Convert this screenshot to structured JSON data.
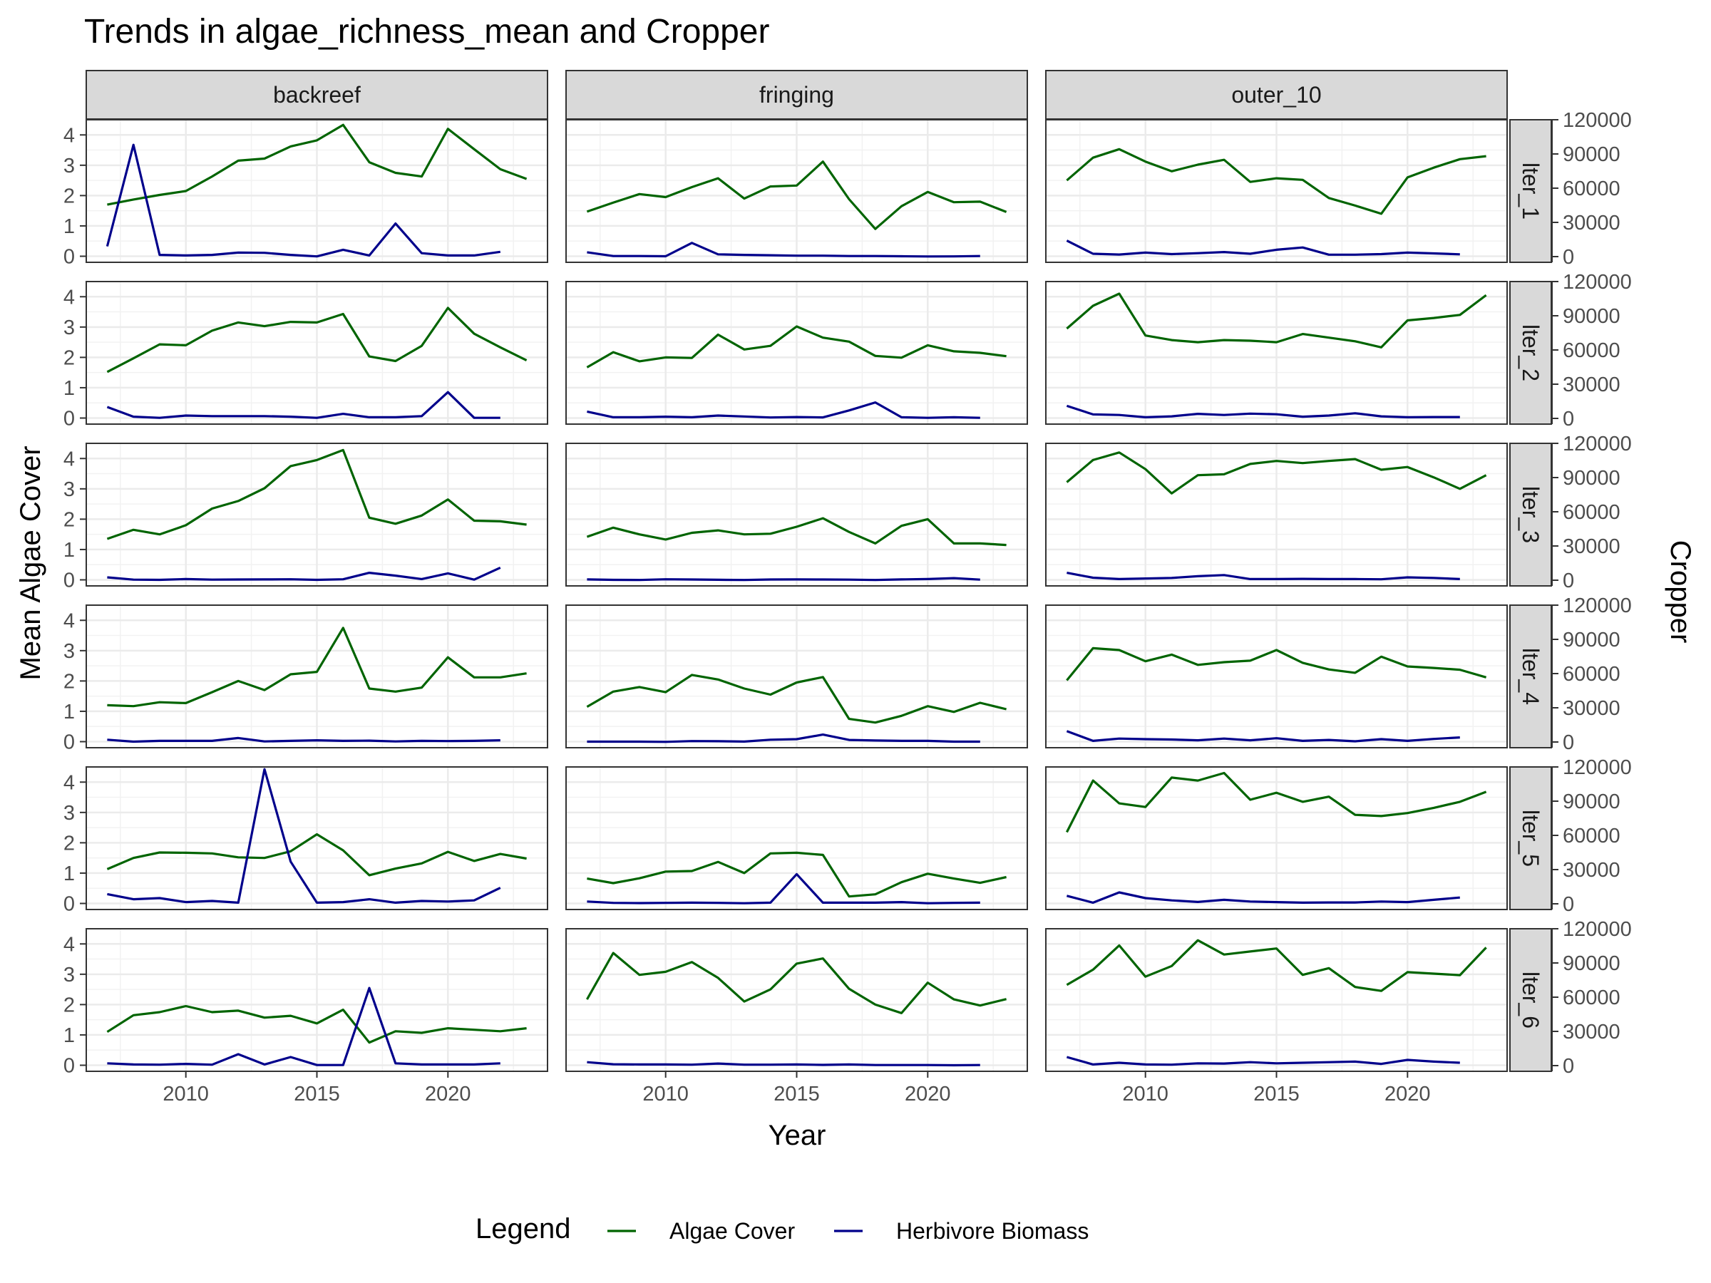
{
  "chart_data": {
    "type": "line",
    "title": "Trends in algae_richness_mean and Cropper",
    "xlabel": "Year",
    "ylabel": "Mean Algae Cover",
    "ylabel_secondary": "Cropper",
    "x_ticks": [
      2010,
      2015,
      2020
    ],
    "y_ticks": [
      0,
      1,
      2,
      3,
      4
    ],
    "y2_ticks": [
      0,
      30000,
      60000,
      90000,
      120000
    ],
    "xlim": [
      2006.2,
      2023.8
    ],
    "ylim": [
      -0.2,
      4.5
    ],
    "y2lim": [
      -5000,
      120000
    ],
    "grid": true,
    "legend_title": "Legend",
    "legend_position": "bottom",
    "series_meta": [
      {
        "name": "Algae Cover",
        "color": "#006400",
        "axis": "left"
      },
      {
        "name": "Herbivore Biomass",
        "color": "#00008B",
        "axis": "right"
      }
    ],
    "years": [
      2007,
      2008,
      2009,
      2010,
      2011,
      2012,
      2013,
      2014,
      2015,
      2016,
      2017,
      2018,
      2019,
      2020,
      2021,
      2022,
      2023
    ],
    "herbivore_years": [
      2007,
      2008,
      2009,
      2010,
      2011,
      2012,
      2013,
      2014,
      2015,
      2016,
      2017,
      2018,
      2019,
      2020,
      2021,
      2022
    ],
    "columns": [
      "backreef",
      "fringing",
      "outer_10"
    ],
    "rows": [
      "lter_1",
      "lter_2",
      "lter_3",
      "lter_4",
      "lter_5",
      "lter_6"
    ],
    "panels": [
      {
        "row": "lter_1",
        "col": "backreef",
        "algae": [
          1.7,
          1.87,
          2.02,
          2.15,
          2.63,
          3.15,
          3.22,
          3.62,
          3.82,
          4.33,
          3.1,
          2.75,
          2.63,
          4.2,
          3.53,
          2.87,
          2.55
        ],
        "herbivore": [
          9000,
          98000,
          1500,
          1000,
          1500,
          3500,
          3300,
          1500,
          200,
          6000,
          1000,
          29000,
          3000,
          1000,
          1000,
          4200
        ]
      },
      {
        "row": "lter_1",
        "col": "fringing",
        "algae": [
          1.47,
          1.77,
          2.05,
          1.95,
          2.28,
          2.57,
          1.9,
          2.3,
          2.33,
          3.12,
          1.88,
          0.9,
          1.65,
          2.12,
          1.78,
          1.8,
          1.46
        ],
        "herbivore": [
          3800,
          500,
          500,
          300,
          12000,
          2000,
          1500,
          1200,
          800,
          800,
          500,
          500,
          300,
          100,
          200,
          500
        ]
      },
      {
        "row": "lter_1",
        "col": "outer_10",
        "algae": [
          2.5,
          3.25,
          3.53,
          3.12,
          2.8,
          3.02,
          3.18,
          2.45,
          2.57,
          2.52,
          1.92,
          1.67,
          1.4,
          2.6,
          2.92,
          3.2,
          3.3
        ],
        "herbivore": [
          14000,
          2500,
          1800,
          3500,
          2200,
          3000,
          4000,
          2500,
          6000,
          8000,
          1700,
          1700,
          2200,
          3500,
          2800,
          2000
        ]
      },
      {
        "row": "lter_2",
        "col": "backreef",
        "algae": [
          1.52,
          1.97,
          2.43,
          2.4,
          2.88,
          3.15,
          3.03,
          3.17,
          3.15,
          3.43,
          2.03,
          1.88,
          2.38,
          3.63,
          2.78,
          2.33,
          1.9
        ],
        "herbivore": [
          10000,
          1500,
          500,
          2500,
          2000,
          2000,
          2000,
          1500,
          500,
          4000,
          1000,
          1000,
          2000,
          23000,
          500,
          500
        ]
      },
      {
        "row": "lter_2",
        "col": "fringing",
        "algae": [
          1.67,
          2.17,
          1.87,
          2.0,
          1.98,
          2.75,
          2.26,
          2.38,
          3.02,
          2.65,
          2.52,
          2.05,
          1.99,
          2.4,
          2.2,
          2.15,
          2.04
        ],
        "herbivore": [
          6000,
          1000,
          1000,
          1500,
          1000,
          2500,
          1700,
          800,
          1200,
          900,
          7000,
          14000,
          1000,
          500,
          1000,
          500
        ]
      },
      {
        "row": "lter_2",
        "col": "outer_10",
        "algae": [
          2.95,
          3.7,
          4.1,
          2.72,
          2.57,
          2.5,
          2.57,
          2.55,
          2.5,
          2.77,
          2.65,
          2.53,
          2.33,
          3.22,
          3.3,
          3.4,
          4.05
        ],
        "herbivore": [
          11000,
          3500,
          3000,
          1000,
          1800,
          4000,
          3000,
          4200,
          3600,
          1500,
          2500,
          4500,
          1800,
          1000,
          1200,
          1200
        ]
      },
      {
        "row": "lter_3",
        "col": "backreef",
        "algae": [
          1.35,
          1.65,
          1.5,
          1.8,
          2.35,
          2.6,
          3.02,
          3.75,
          3.95,
          4.28,
          2.05,
          1.85,
          2.12,
          2.65,
          1.95,
          1.93,
          1.82
        ],
        "herbivore": [
          2500,
          500,
          300,
          1000,
          500,
          600,
          700,
          800,
          300,
          800,
          6500,
          4000,
          1000,
          6000,
          500,
          11000
        ]
      },
      {
        "row": "lter_3",
        "col": "fringing",
        "algae": [
          1.42,
          1.72,
          1.5,
          1.33,
          1.55,
          1.63,
          1.5,
          1.52,
          1.75,
          2.03,
          1.58,
          1.2,
          1.78,
          2.0,
          1.2,
          1.2,
          1.15
        ],
        "herbivore": [
          700,
          300,
          200,
          800,
          600,
          400,
          200,
          600,
          700,
          600,
          500,
          200,
          700,
          1000,
          1800,
          500
        ]
      },
      {
        "row": "lter_3",
        "col": "outer_10",
        "algae": [
          3.22,
          3.95,
          4.2,
          3.65,
          2.85,
          3.45,
          3.48,
          3.82,
          3.92,
          3.85,
          3.92,
          3.98,
          3.63,
          3.72,
          3.38,
          3.0,
          3.45
        ],
        "herbivore": [
          6500,
          2200,
          1000,
          1500,
          2000,
          3500,
          4500,
          1000,
          1000,
          1200,
          1000,
          1000,
          800,
          2500,
          2000,
          1000
        ]
      },
      {
        "row": "lter_4",
        "col": "backreef",
        "algae": [
          1.2,
          1.17,
          1.3,
          1.27,
          1.63,
          2.0,
          1.7,
          2.22,
          2.3,
          3.75,
          1.75,
          1.65,
          1.78,
          2.78,
          2.12,
          2.12,
          2.25
        ],
        "herbivore": [
          2000,
          300,
          1000,
          1000,
          1000,
          3500,
          500,
          1000,
          1500,
          1000,
          1200,
          500,
          1000,
          800,
          1000,
          1500
        ]
      },
      {
        "row": "lter_4",
        "col": "fringing",
        "algae": [
          1.15,
          1.65,
          1.8,
          1.63,
          2.2,
          2.05,
          1.75,
          1.55,
          1.95,
          2.13,
          0.75,
          0.63,
          0.85,
          1.17,
          0.98,
          1.28,
          1.07
        ],
        "herbivore": [
          300,
          300,
          300,
          100,
          800,
          700,
          400,
          2000,
          2500,
          6500,
          1800,
          1300,
          1000,
          1000,
          300,
          300
        ]
      },
      {
        "row": "lter_4",
        "col": "outer_10",
        "algae": [
          2.02,
          3.08,
          3.02,
          2.65,
          2.87,
          2.53,
          2.62,
          2.67,
          3.02,
          2.6,
          2.38,
          2.27,
          2.8,
          2.48,
          2.43,
          2.37,
          2.12
        ],
        "herbivore": [
          9500,
          1000,
          3000,
          2500,
          2200,
          1500,
          3000,
          1500,
          3300,
          1000,
          1800,
          600,
          2500,
          1000,
          2700,
          4000
        ]
      },
      {
        "row": "lter_5",
        "col": "backreef",
        "algae": [
          1.13,
          1.5,
          1.68,
          1.67,
          1.65,
          1.52,
          1.5,
          1.72,
          2.28,
          1.75,
          0.93,
          1.15,
          1.32,
          1.7,
          1.4,
          1.63,
          1.48
        ],
        "herbivore": [
          8500,
          4000,
          5000,
          1500,
          2500,
          1000,
          118000,
          37000,
          1000,
          1500,
          4000,
          1000,
          2500,
          2000,
          3000,
          14000
        ]
      },
      {
        "row": "lter_5",
        "col": "fringing",
        "algae": [
          0.82,
          0.67,
          0.83,
          1.05,
          1.07,
          1.37,
          1.0,
          1.65,
          1.67,
          1.6,
          0.23,
          0.3,
          0.7,
          0.98,
          0.82,
          0.68,
          0.87
        ],
        "herbivore": [
          2000,
          800,
          600,
          800,
          1000,
          800,
          500,
          1000,
          26000,
          1000,
          1000,
          1000,
          1500,
          500,
          800,
          1000
        ]
      },
      {
        "row": "lter_5",
        "col": "outer_10",
        "algae": [
          2.35,
          4.05,
          3.3,
          3.18,
          4.15,
          4.05,
          4.3,
          3.42,
          3.65,
          3.35,
          3.52,
          2.92,
          2.88,
          2.98,
          3.15,
          3.35,
          3.68
        ],
        "herbivore": [
          7000,
          1000,
          10000,
          5000,
          3000,
          1600,
          3500,
          2000,
          1500,
          1000,
          1200,
          1200,
          2000,
          1500,
          3500,
          5500
        ]
      },
      {
        "row": "lter_6",
        "col": "backreef",
        "algae": [
          1.1,
          1.65,
          1.75,
          1.95,
          1.75,
          1.8,
          1.57,
          1.63,
          1.38,
          1.83,
          0.75,
          1.12,
          1.07,
          1.22,
          1.17,
          1.12,
          1.22
        ],
        "herbivore": [
          2000,
          1000,
          800,
          1500,
          800,
          10000,
          1000,
          7500,
          500,
          500,
          68000,
          2000,
          1000,
          1000,
          1000,
          2000
        ]
      },
      {
        "row": "lter_6",
        "col": "fringing",
        "algae": [
          2.17,
          3.7,
          2.98,
          3.08,
          3.4,
          2.88,
          2.1,
          2.5,
          3.35,
          3.52,
          2.52,
          2.0,
          1.72,
          2.72,
          2.17,
          1.97,
          2.18
        ],
        "herbivore": [
          3000,
          1200,
          1000,
          1000,
          800,
          1800,
          800,
          800,
          1000,
          600,
          1000,
          500,
          500,
          500,
          300,
          500
        ]
      },
      {
        "row": "lter_6",
        "col": "outer_10",
        "algae": [
          2.65,
          3.15,
          3.95,
          2.92,
          3.27,
          4.12,
          3.65,
          3.75,
          3.85,
          2.98,
          3.2,
          2.58,
          2.45,
          3.07,
          3.02,
          2.97,
          3.88
        ],
        "herbivore": [
          7500,
          1000,
          2500,
          1000,
          800,
          2000,
          1800,
          3000,
          2000,
          2500,
          3000,
          3500,
          1500,
          5000,
          3500,
          2500
        ]
      }
    ]
  }
}
